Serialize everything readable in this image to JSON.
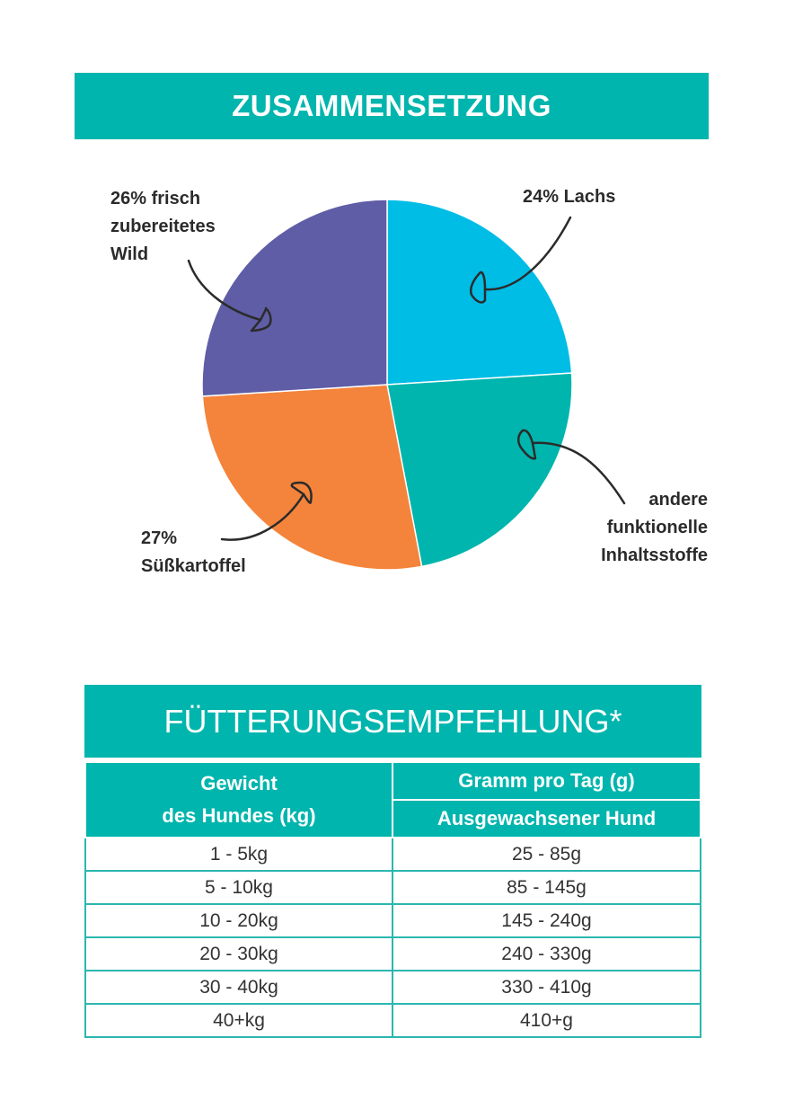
{
  "composition": {
    "title": "ZUSAMMENSETZUNG"
  },
  "chart_data": {
    "type": "pie",
    "title": "ZUSAMMENSETZUNG",
    "slices": [
      {
        "label": "24% Lachs",
        "value": 24,
        "color": "#00bde6"
      },
      {
        "label": "andere funktionelle Inhaltsstoffe",
        "value": 23,
        "color": "#00b5ad"
      },
      {
        "label": "27% Süßkartoffel",
        "value": 27,
        "color": "#f4843b"
      },
      {
        "label": "26% frisch zubereitetes Wild",
        "value": 26,
        "color": "#5f5da6"
      }
    ],
    "labels_display": {
      "lachs": "24% Lachs",
      "andere": [
        "andere",
        "funktionelle",
        "Inhaltsstoffe"
      ],
      "suess": [
        "27%",
        "Süßkartoffel"
      ],
      "wild": [
        "26% frisch",
        "zubereitetes",
        "Wild"
      ]
    }
  },
  "feeding": {
    "title": "FÜTTERUNGSEMPFEHLUNG*",
    "col1_header": [
      "Gewicht",
      "des Hundes (kg)"
    ],
    "col2_header": "Gramm pro Tag (g)",
    "col2_subheader": "Ausgewachsener Hund",
    "rows": [
      [
        "1 - 5kg",
        "25 - 85g"
      ],
      [
        "5 - 10kg",
        "85 - 145g"
      ],
      [
        "10 - 20kg",
        "145 - 240g"
      ],
      [
        "20 - 30kg",
        "240 - 330g"
      ],
      [
        "30 - 40kg",
        "330 - 410g"
      ],
      [
        "40+kg",
        "410+g"
      ]
    ]
  }
}
